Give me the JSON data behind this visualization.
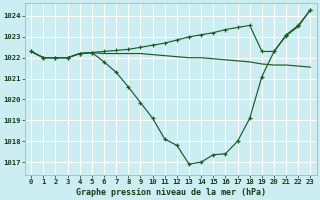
{
  "title": "Graphe pression niveau de la mer (hPa)",
  "background_color": "#cceef2",
  "grid_color": "#ffffff",
  "line_color": "#1a5c28",
  "x_labels": [
    "0",
    "1",
    "2",
    "3",
    "4",
    "5",
    "6",
    "7",
    "8",
    "9",
    "10",
    "11",
    "12",
    "13",
    "14",
    "15",
    "16",
    "17",
    "18",
    "19",
    "20",
    "21",
    "22",
    "23"
  ],
  "ylim": [
    1016.4,
    1024.6
  ],
  "yticks": [
    1017,
    1018,
    1019,
    1020,
    1021,
    1022,
    1023,
    1024
  ],
  "line1": [
    1022.3,
    1022.0,
    1022.0,
    1022.0,
    1022.2,
    1022.25,
    1021.8,
    1021.3,
    1020.6,
    1019.85,
    1019.1,
    1018.1,
    1017.8,
    1016.9,
    1017.0,
    1017.35,
    1017.4,
    1018.0,
    1019.1,
    1021.1,
    1022.3,
    1023.1,
    1023.55,
    1024.3
  ],
  "line2": [
    1022.3,
    1022.0,
    1022.0,
    1022.0,
    1022.2,
    1022.25,
    1022.2,
    1022.2,
    1022.2,
    1022.2,
    1022.15,
    1022.1,
    1022.05,
    1022.0,
    1022.0,
    1021.95,
    1021.9,
    1021.85,
    1021.8,
    1021.7,
    1021.65,
    1021.65,
    1021.6,
    1021.55
  ],
  "line3": [
    1022.3,
    1022.0,
    1022.0,
    1022.0,
    1022.2,
    1022.25,
    1022.3,
    1022.35,
    1022.4,
    1022.5,
    1022.6,
    1022.7,
    1022.85,
    1023.0,
    1023.1,
    1023.2,
    1023.35,
    1023.45,
    1023.55,
    1022.3,
    1022.3,
    1023.05,
    1023.5,
    1024.3
  ]
}
